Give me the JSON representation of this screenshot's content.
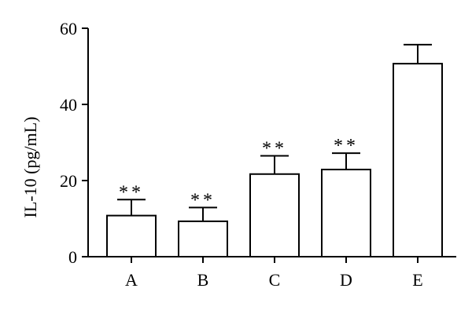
{
  "chart_data": {
    "type": "bar",
    "title": "",
    "xlabel": "",
    "ylabel": "IL-10 (pg/mL)",
    "ylim": [
      0,
      60
    ],
    "yticks": [
      0,
      20,
      40,
      60
    ],
    "categories": [
      "A",
      "B",
      "C",
      "D",
      "E"
    ],
    "series": [
      {
        "values": [
          10.8,
          9.3,
          21.7,
          22.9,
          50.7
        ],
        "error": [
          4.2,
          3.6,
          4.8,
          4.3,
          5.0
        ],
        "annotations": [
          "**",
          "**",
          "**",
          "**",
          ""
        ]
      }
    ],
    "grid": false,
    "legend": "none",
    "colors": {
      "bar_fill": "#ffffff",
      "stroke": "#000000"
    }
  }
}
